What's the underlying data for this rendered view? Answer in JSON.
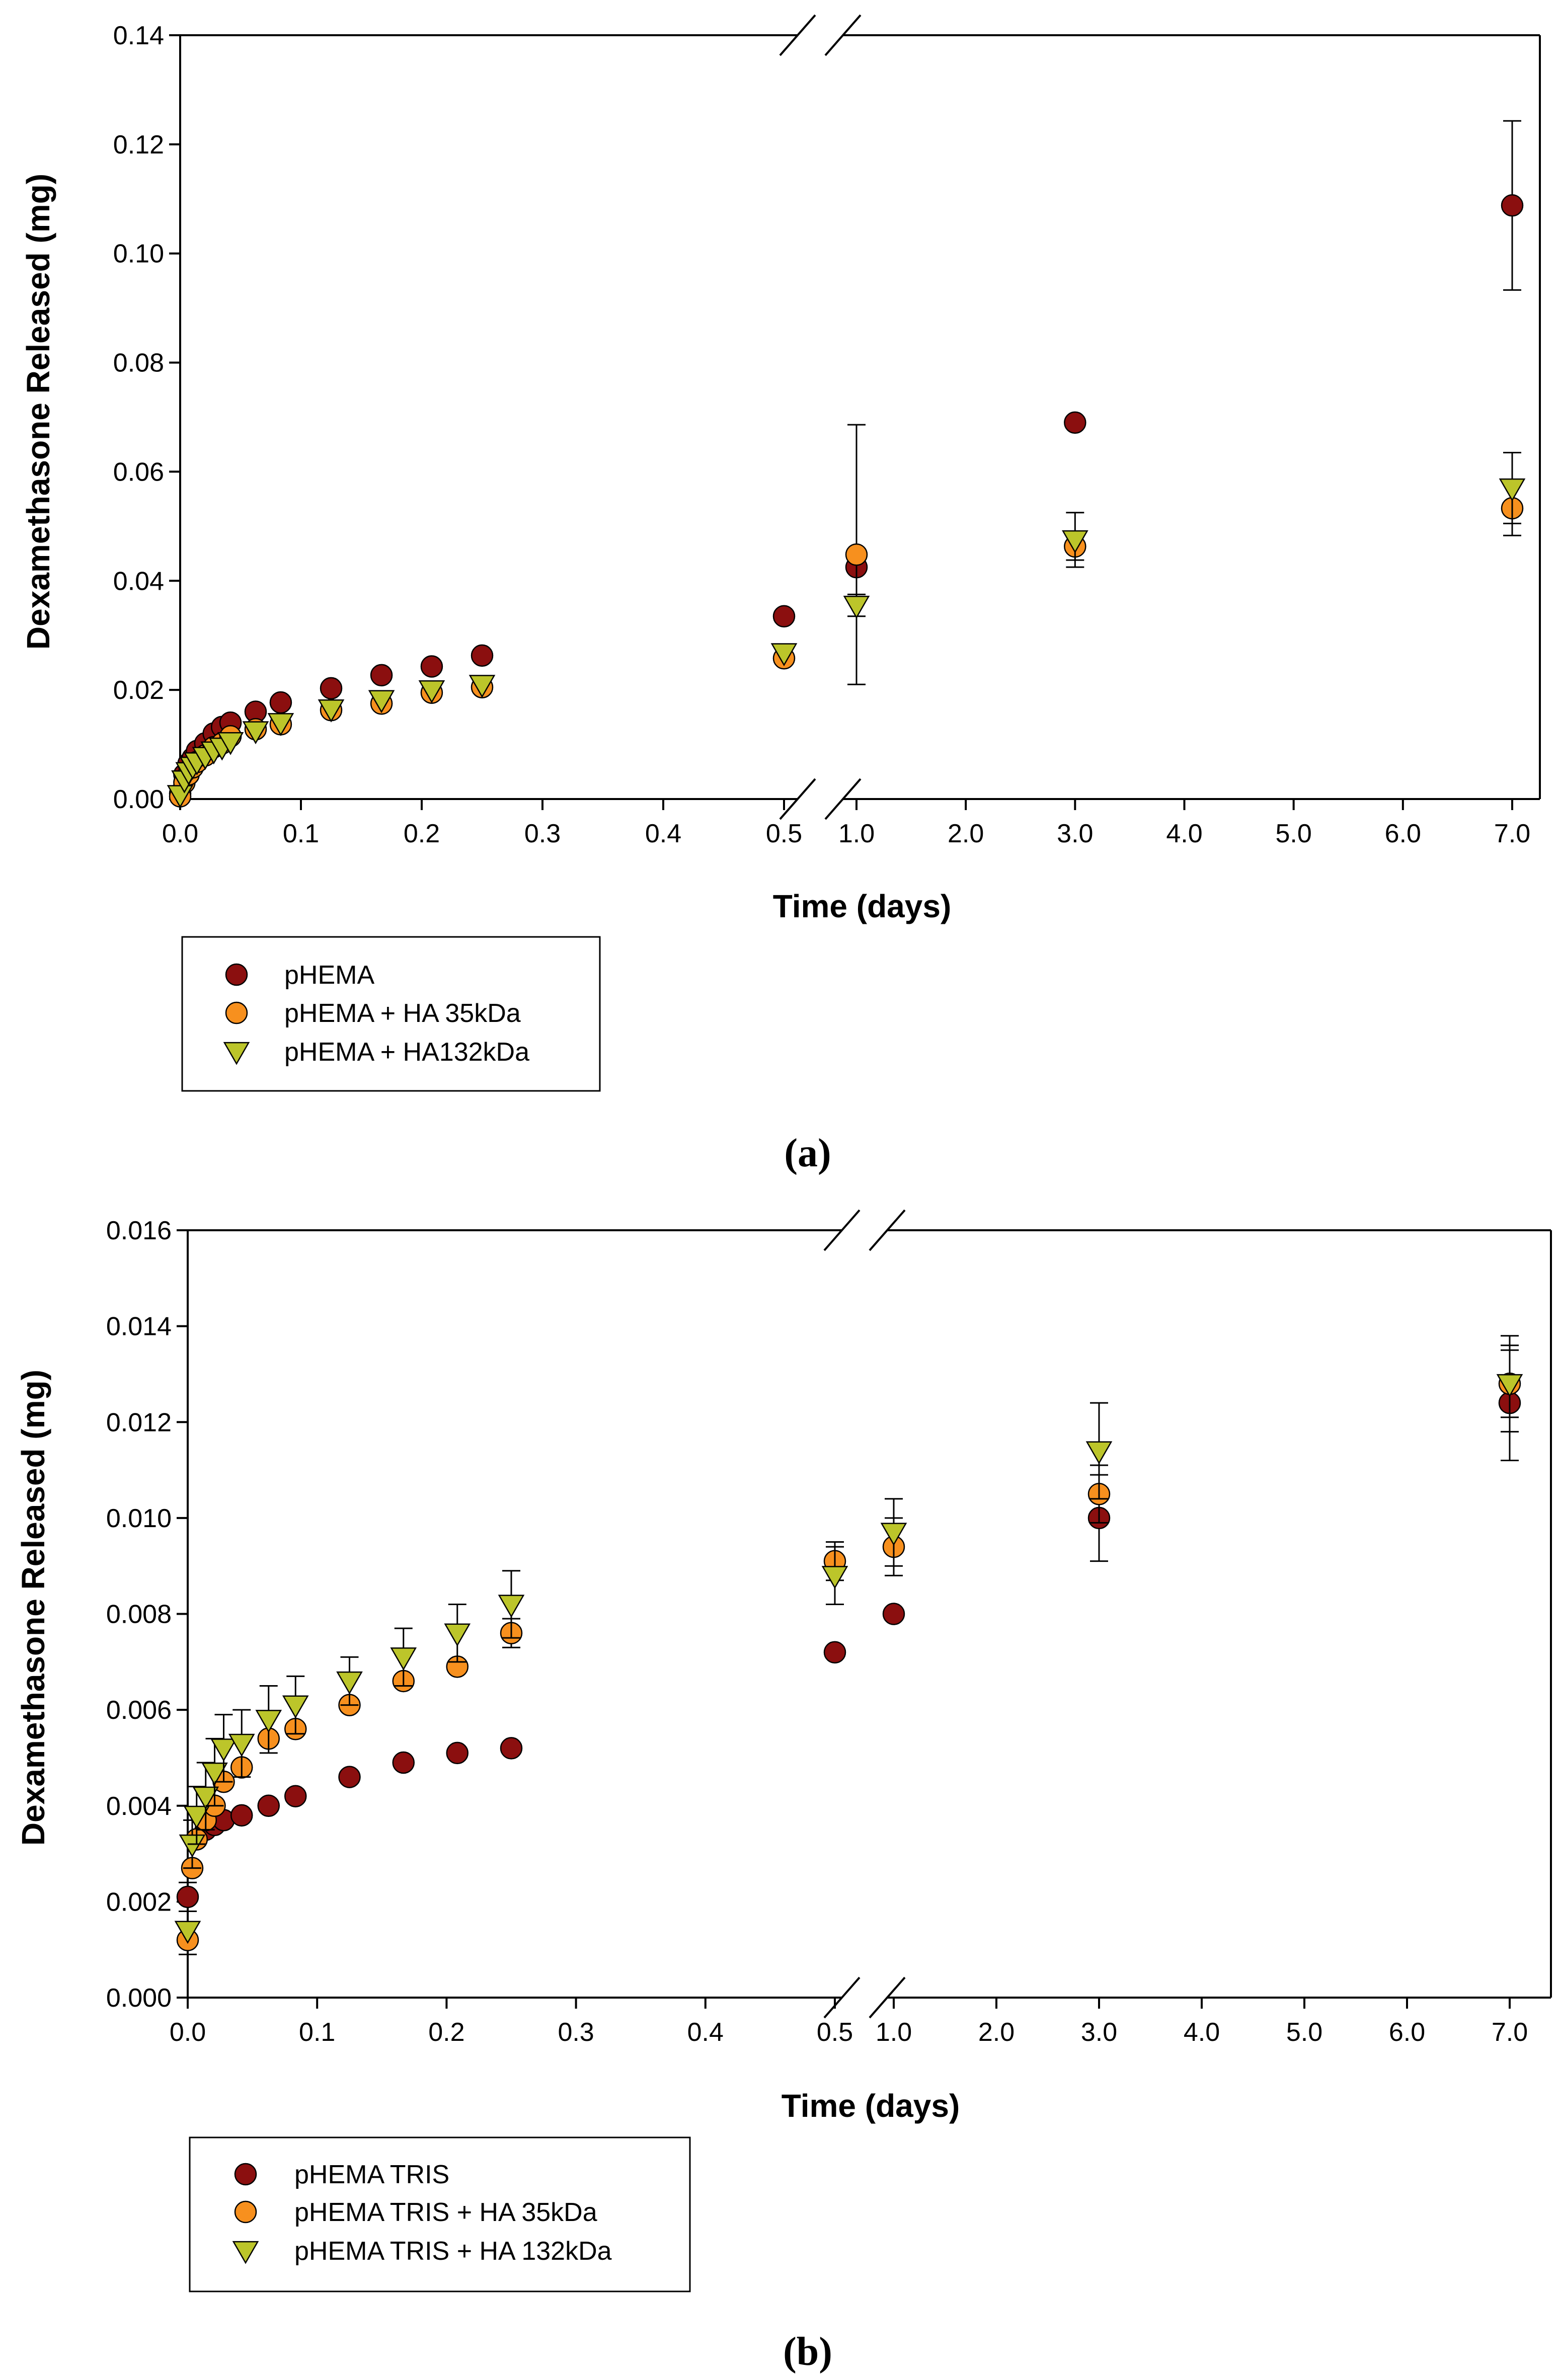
{
  "figure": {
    "panel_labels": [
      "a",
      "b"
    ]
  },
  "colors": {
    "s1": "#8b0f0f",
    "s2": "#f7901e",
    "s3": "#bcc52a",
    "axis": "#000000"
  },
  "chart_data": [
    {
      "type": "scatter",
      "panel": "a",
      "xlabel": "Time (days)",
      "ylabel": "Dexamethasone Released (mg)",
      "ylim": [
        0,
        0.14
      ],
      "yticks": [
        "0.00",
        "0.02",
        "0.04",
        "0.06",
        "0.08",
        "0.10",
        "0.12",
        "0.14"
      ],
      "x_axis_broken": true,
      "x_segment_1": {
        "xlim": [
          0,
          0.5
        ],
        "ticks": [
          "0.0",
          "0.1",
          "0.2",
          "0.3",
          "0.4",
          "0.5"
        ]
      },
      "x_segment_2": {
        "xlim": [
          1,
          7
        ],
        "ticks": [
          "1.0",
          "2.0",
          "3.0",
          "4.0",
          "5.0",
          "6.0",
          "7.0"
        ]
      },
      "legend_position": "bottom-left",
      "series": [
        {
          "name": "pHEMA",
          "marker": "circle",
          "color": "#8b0f0f",
          "x": [
            0,
            0.0035,
            0.007,
            0.0104,
            0.0139,
            0.0208,
            0.0278,
            0.0347,
            0.0417,
            0.0625,
            0.0833,
            0.125,
            0.1667,
            0.2083,
            0.25,
            0.5,
            1,
            3,
            7
          ],
          "y": [
            0.001,
            0.0045,
            0.0065,
            0.0075,
            0.0088,
            0.0102,
            0.012,
            0.0132,
            0.014,
            0.016,
            0.0177,
            0.0203,
            0.0227,
            0.0243,
            0.0263,
            0.0335,
            0.0425,
            0.069,
            0.1088
          ],
          "err": [
            0,
            0,
            0,
            0,
            0,
            0,
            0,
            0,
            0,
            0,
            0,
            0,
            0,
            0,
            0,
            0,
            0,
            0,
            0.0155
          ]
        },
        {
          "name": "pHEMA + HA 35kDa",
          "marker": "circle",
          "color": "#f7901e",
          "x": [
            0,
            0.0035,
            0.007,
            0.0104,
            0.0139,
            0.0208,
            0.0278,
            0.0347,
            0.0417,
            0.0625,
            0.0833,
            0.125,
            0.1667,
            0.2083,
            0.25,
            0.5,
            1,
            3,
            7
          ],
          "y": [
            0.0005,
            0.003,
            0.0045,
            0.0058,
            0.0068,
            0.008,
            0.0095,
            0.0102,
            0.0115,
            0.0128,
            0.0137,
            0.0163,
            0.0175,
            0.0195,
            0.0205,
            0.0258,
            0.0448,
            0.0463,
            0.0533
          ],
          "err": [
            0,
            0,
            0,
            0,
            0,
            0,
            0,
            0,
            0,
            0,
            0,
            0,
            0,
            0,
            0,
            0,
            0.0238,
            0.0025,
            0.005
          ]
        },
        {
          "name": "pHEMA + HA132kDa",
          "marker": "triangle-down",
          "color": "#bcc52a",
          "x": [
            0,
            0.0035,
            0.007,
            0.0104,
            0.0139,
            0.0208,
            0.0278,
            0.0347,
            0.0417,
            0.0625,
            0.0833,
            0.125,
            0.1667,
            0.2083,
            0.25,
            0.5,
            1,
            3,
            7
          ],
          "y": [
            0.0008,
            0.0035,
            0.005,
            0.006,
            0.0068,
            0.0078,
            0.0088,
            0.0095,
            0.0105,
            0.0125,
            0.014,
            0.0165,
            0.0182,
            0.02,
            0.021,
            0.0268,
            0.0355,
            0.0475,
            0.057
          ],
          "err": [
            0,
            0,
            0,
            0,
            0,
            0,
            0,
            0,
            0,
            0,
            0,
            0,
            0,
            0,
            0,
            0,
            0.002,
            0.005,
            0.0065
          ]
        }
      ]
    },
    {
      "type": "scatter",
      "panel": "b",
      "xlabel": "Time (days)",
      "ylabel": "Dexamethasone Released (mg)",
      "ylim": [
        0,
        0.016
      ],
      "yticks": [
        "0.000",
        "0.002",
        "0.004",
        "0.006",
        "0.008",
        "0.010",
        "0.012",
        "0.014",
        "0.016"
      ],
      "x_axis_broken": true,
      "x_segment_1": {
        "xlim": [
          0,
          0.5
        ],
        "ticks": [
          "0.0",
          "0.1",
          "0.2",
          "0.3",
          "0.4",
          "0.5"
        ]
      },
      "x_segment_2": {
        "xlim": [
          1,
          7
        ],
        "ticks": [
          "1.0",
          "2.0",
          "3.0",
          "4.0",
          "5.0",
          "6.0",
          "7.0"
        ]
      },
      "legend_position": "bottom-left",
      "series": [
        {
          "name": "pHEMA TRIS",
          "marker": "circle",
          "color": "#8b0f0f",
          "x": [
            0,
            0.0069,
            0.0139,
            0.0208,
            0.0278,
            0.0417,
            0.0625,
            0.0833,
            0.125,
            0.1667,
            0.2083,
            0.25,
            0.5,
            1,
            3,
            7
          ],
          "y": [
            0.0021,
            0.0033,
            0.0035,
            0.0036,
            0.0037,
            0.0038,
            0.004,
            0.0042,
            0.0046,
            0.0049,
            0.0051,
            0.0052,
            0.0072,
            0.008,
            0.01,
            0.0124
          ],
          "err": [
            0.0003,
            0,
            0,
            0,
            0,
            0,
            0,
            0,
            0,
            0,
            0,
            0,
            0,
            0,
            0.0009,
            0.0012
          ]
        },
        {
          "name": "pHEMA TRIS + HA 35kDa",
          "marker": "circle",
          "color": "#f7901e",
          "x": [
            0,
            0.0035,
            0.0069,
            0.0139,
            0.0208,
            0.0278,
            0.0417,
            0.0625,
            0.0833,
            0.125,
            0.1667,
            0.2083,
            0.25,
            0.5,
            1,
            3,
            7
          ],
          "y": [
            0.0012,
            0.0027,
            0.0033,
            0.0037,
            0.004,
            0.0045,
            0.0048,
            0.0054,
            0.0056,
            0.0061,
            0.0066,
            0.0069,
            0.0076,
            0.0091,
            0.0094,
            0.0105,
            0.0128
          ],
          "err": [
            0.0003,
            0,
            0,
            0,
            0,
            0,
            0,
            0,
            0,
            0,
            0,
            0,
            0.0003,
            0.0004,
            0.0006,
            0.0006,
            0.0007
          ]
        },
        {
          "name": "pHEMA TRIS + HA 132kDa",
          "marker": "triangle-down",
          "color": "#bcc52a",
          "x": [
            0,
            0.0035,
            0.0069,
            0.0139,
            0.0208,
            0.0278,
            0.0417,
            0.0625,
            0.0833,
            0.125,
            0.1667,
            0.2083,
            0.25,
            0.5,
            1,
            3,
            7
          ],
          "y": [
            0.0014,
            0.0032,
            0.0038,
            0.0042,
            0.0047,
            0.0052,
            0.0053,
            0.0058,
            0.0061,
            0.0066,
            0.0071,
            0.0076,
            0.0082,
            0.0088,
            0.0097,
            0.0114,
            0.0128
          ],
          "err": [
            0,
            0.0005,
            0.0006,
            0.0007,
            0.0007,
            0.0007,
            0.0007,
            0.0007,
            0.0006,
            0.0005,
            0.0006,
            0.0006,
            0.0007,
            0.0006,
            0.0007,
            0.001,
            0.001
          ]
        }
      ]
    }
  ]
}
